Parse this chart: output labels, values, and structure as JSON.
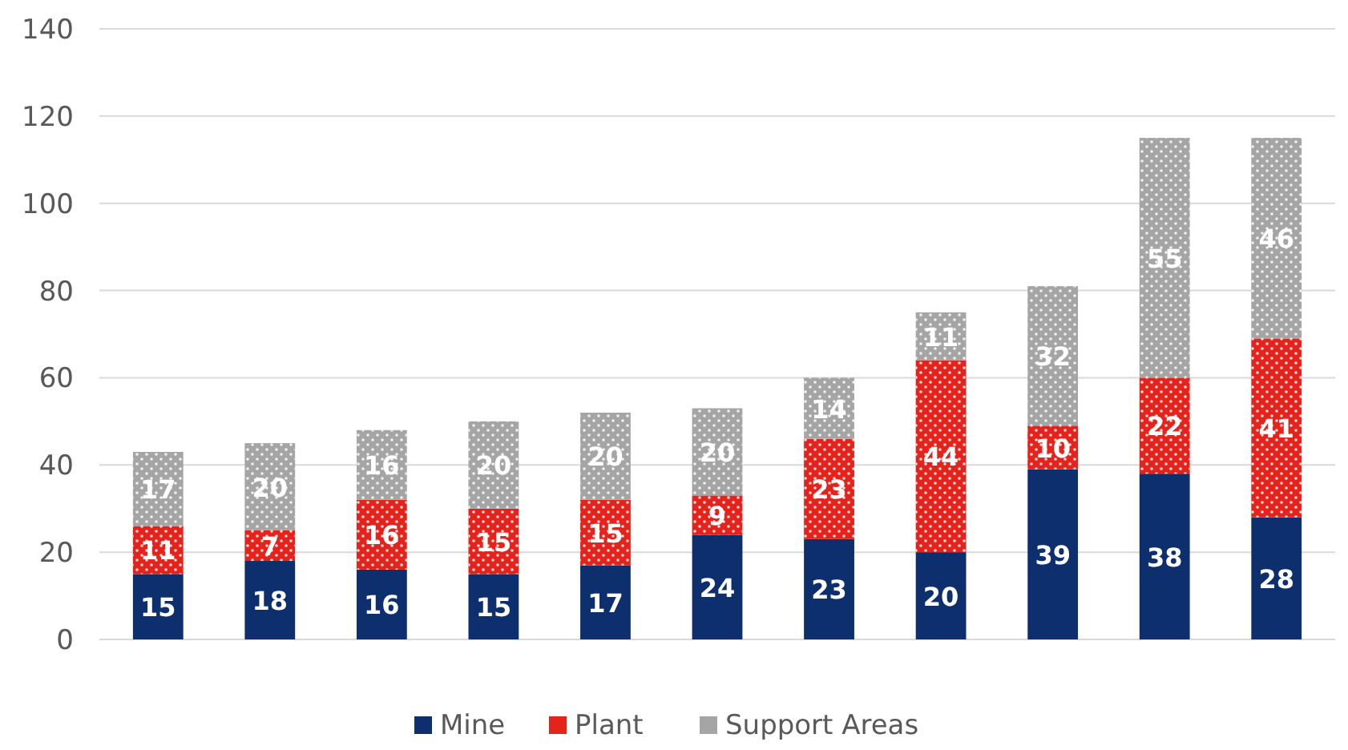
{
  "chart_data": {
    "type": "bar",
    "stacked": true,
    "categories": [
      null,
      null,
      null,
      null,
      null,
      null,
      null,
      null,
      null,
      null,
      null
    ],
    "series": [
      {
        "name": "Mine",
        "color": "#0d2f6e",
        "values": [
          15,
          18,
          16,
          15,
          17,
          24,
          23,
          20,
          39,
          38,
          28
        ]
      },
      {
        "name": "Plant",
        "color": "#e3231c",
        "values": [
          11,
          7,
          16,
          15,
          15,
          9,
          23,
          44,
          10,
          22,
          41
        ]
      },
      {
        "name": "Support Areas",
        "color": "#a5a5a5",
        "values": [
          17,
          20,
          16,
          20,
          20,
          20,
          14,
          11,
          32,
          55,
          46
        ]
      }
    ],
    "ylim": [
      0,
      140
    ],
    "yticks": [
      0,
      20,
      40,
      60,
      80,
      100,
      120,
      140
    ],
    "grid": "y",
    "legend": "bottom",
    "data_labels": true
  }
}
